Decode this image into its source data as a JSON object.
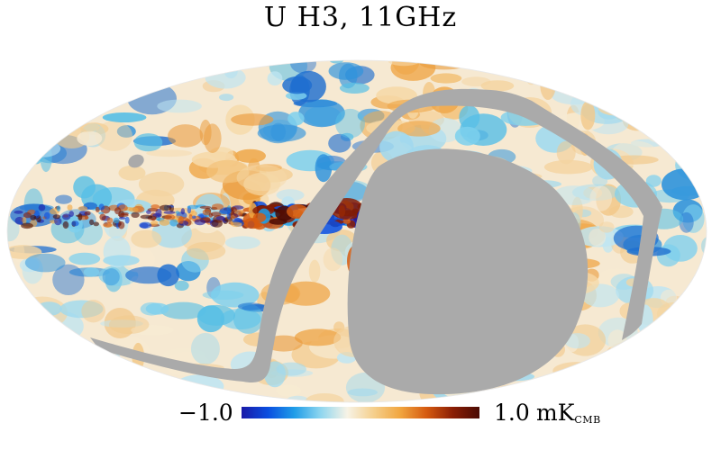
{
  "title": "U H3, 11GHz",
  "colorbar": {
    "min_label": "−1.0",
    "max_label": "1.0",
    "unit_main": "mK",
    "unit_sub": "CMB",
    "min": -1.0,
    "max": 1.0,
    "colors": [
      "#1a1aa8",
      "#0a4ee0",
      "#1f9de8",
      "#8fd6ef",
      "#f7f3e6",
      "#f5cf8c",
      "#f1a640",
      "#d55a10",
      "#8a1e05",
      "#4a0a04"
    ]
  },
  "mask_color": "#aaaaaa"
}
